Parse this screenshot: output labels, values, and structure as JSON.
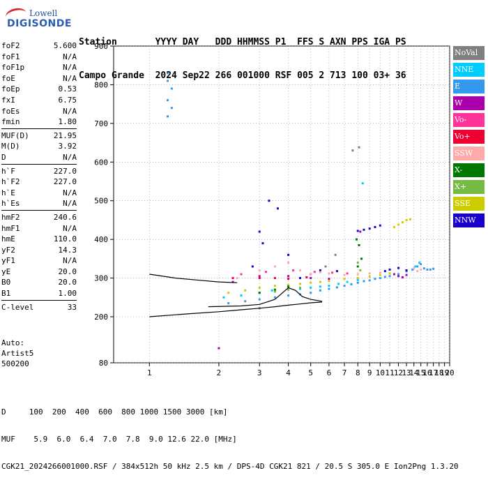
{
  "logo": {
    "line1": "Lowell",
    "line2": "DIGISONDE"
  },
  "header": {
    "line1": "Station       YYYY DAY   DDD HHMMSS P1  FFS S AXN PPS IGA PS",
    "line2": "Campo Grande  2024 Sep22 266 001000 RSF 005 2 713 100 03+ 36"
  },
  "params": {
    "group1": [
      {
        "name": "foF2",
        "value": "5.600"
      },
      {
        "name": "foF1",
        "value": "N/A"
      },
      {
        "name": "foF1p",
        "value": "N/A"
      },
      {
        "name": "foE",
        "value": "N/A"
      },
      {
        "name": "foEp",
        "value": "0.53"
      },
      {
        "name": "fxI",
        "value": "6.75"
      },
      {
        "name": "foEs",
        "value": "N/A"
      },
      {
        "name": "fmin",
        "value": "1.80"
      }
    ],
    "group2": [
      {
        "name": "MUF(D)",
        "value": "21.95"
      },
      {
        "name": "M(D)",
        "value": "3.92"
      },
      {
        "name": "D",
        "value": "N/A"
      }
    ],
    "group3": [
      {
        "name": "h`F",
        "value": "227.0"
      },
      {
        "name": "h`F2",
        "value": "227.0"
      },
      {
        "name": "h`E",
        "value": "N/A"
      },
      {
        "name": "h`Es",
        "value": "N/A"
      }
    ],
    "group4": [
      {
        "name": "hmF2",
        "value": "240.6"
      },
      {
        "name": "hmF1",
        "value": "N/A"
      },
      {
        "name": "hmE",
        "value": "110.0"
      },
      {
        "name": "yF2",
        "value": "14.3"
      },
      {
        "name": "yF1",
        "value": "N/A"
      },
      {
        "name": "yE",
        "value": "20.0"
      },
      {
        "name": "B0",
        "value": "20.0"
      },
      {
        "name": "B1",
        "value": "1.00"
      }
    ],
    "group5": [
      {
        "name": "C-level",
        "value": "33"
      }
    ]
  },
  "auto": {
    "label": "Auto:",
    "software": "Artist5",
    "version": "500200"
  },
  "legend": [
    {
      "label": "NoVal",
      "color": "#808080"
    },
    {
      "label": "NNE",
      "color": "#00ccff"
    },
    {
      "label": "E",
      "color": "#3399ee"
    },
    {
      "label": "W",
      "color": "#aa00aa"
    },
    {
      "label": "Vo-",
      "color": "#ff3399"
    },
    {
      "label": "Vo+",
      "color": "#ee0033"
    },
    {
      "label": "SSW",
      "color": "#ffaaaa"
    },
    {
      "label": "X-",
      "color": "#007700"
    },
    {
      "label": "X+",
      "color": "#77bb44"
    },
    {
      "label": "SSE",
      "color": "#cccc00"
    },
    {
      "label": "NNW",
      "color": "#1a00cc"
    }
  ],
  "footer": {
    "line1": "D     100  200  400  600  800 1000 1500 3000 [km]",
    "line2": "MUF    5.9  6.0  6.4  7.0  7.8  9.0 12.6 22.0 [MHz]",
    "line3": "CGK21_2024266001000.RSF / 384x512h 50 kHz 2.5 km / DPS-4D CGK21 821 / 20.5 S 305.0 E Ion2Png 1.3.20"
  },
  "chart_data": {
    "type": "scatter",
    "xlim": [
      0.7,
      20
    ],
    "ylim": [
      80,
      900
    ],
    "xticks": [
      "1",
      "2",
      "3",
      "4",
      "5",
      "6",
      "7",
      "8",
      "9",
      "10",
      "11",
      "12",
      "13",
      "14",
      "15",
      "16",
      "17",
      "18",
      "19",
      "20"
    ],
    "yticks": [
      "80",
      "200",
      "300",
      "400",
      "500",
      "600",
      "700",
      "800",
      "900"
    ],
    "grid": "dotted",
    "legend_position": "right",
    "series": [
      {
        "name": "E",
        "color": "#3399ee",
        "points": [
          [
            1.2,
            830
          ],
          [
            1.2,
            810
          ],
          [
            1.25,
            790
          ],
          [
            1.2,
            760
          ],
          [
            1.25,
            740
          ],
          [
            1.2,
            718
          ],
          [
            2.2,
            235
          ],
          [
            2.6,
            240
          ],
          [
            3.0,
            245
          ],
          [
            3.5,
            250
          ],
          [
            4.0,
            255
          ],
          [
            4.5,
            258
          ],
          [
            5.0,
            262
          ],
          [
            5.5,
            268
          ],
          [
            6.0,
            272
          ],
          [
            6.5,
            276
          ],
          [
            7.0,
            280
          ],
          [
            7.5,
            284
          ],
          [
            8.0,
            288
          ],
          [
            8.5,
            292
          ],
          [
            9.0,
            294
          ],
          [
            9.5,
            298
          ],
          [
            10.0,
            300
          ],
          [
            10.5,
            303
          ],
          [
            11.0,
            305
          ],
          [
            12.0,
            310
          ],
          [
            13.0,
            318
          ],
          [
            13.8,
            322
          ],
          [
            14.5,
            330
          ],
          [
            15.0,
            336
          ],
          [
            15.5,
            325
          ],
          [
            16.0,
            322
          ],
          [
            16.5,
            322
          ],
          [
            17.0,
            324
          ]
        ]
      },
      {
        "name": "NNE",
        "color": "#00ccff",
        "points": [
          [
            2.1,
            250
          ],
          [
            2.5,
            255
          ],
          [
            3.0,
            262
          ],
          [
            3.4,
            268
          ],
          [
            4.0,
            270
          ],
          [
            4.5,
            272
          ],
          [
            5.0,
            275
          ],
          [
            5.5,
            278
          ],
          [
            6.0,
            280
          ],
          [
            6.6,
            285
          ],
          [
            7.2,
            290
          ],
          [
            8.0,
            295
          ],
          [
            8.4,
            545
          ],
          [
            14.2,
            330
          ],
          [
            14.8,
            340
          ]
        ]
      },
      {
        "name": "SSE",
        "color": "#cccc00",
        "points": [
          [
            2.2,
            262
          ],
          [
            2.6,
            268
          ],
          [
            3.0,
            275
          ],
          [
            3.5,
            280
          ],
          [
            4.0,
            282
          ],
          [
            4.5,
            285
          ],
          [
            5.0,
            288
          ],
          [
            5.5,
            290
          ],
          [
            6.0,
            292
          ],
          [
            7.0,
            298
          ],
          [
            8.0,
            300
          ],
          [
            9.0,
            304
          ],
          [
            10.0,
            308
          ],
          [
            11.0,
            312
          ],
          [
            11.5,
            432
          ],
          [
            12.0,
            438
          ],
          [
            12.5,
            444
          ],
          [
            13.0,
            450
          ],
          [
            13.5,
            452
          ]
        ]
      },
      {
        "name": "NNW",
        "color": "#1a00cc",
        "points": [
          [
            2.8,
            330
          ],
          [
            3.0,
            420
          ],
          [
            3.1,
            390
          ],
          [
            3.3,
            500
          ],
          [
            3.6,
            480
          ],
          [
            4.0,
            360
          ],
          [
            4.5,
            300
          ],
          [
            5.0,
            310
          ],
          [
            5.5,
            320
          ],
          [
            6.5,
            318
          ],
          [
            8.0,
            422
          ],
          [
            8.5,
            425
          ],
          [
            9.0,
            428
          ],
          [
            9.5,
            432
          ],
          [
            10.0,
            436
          ],
          [
            10.5,
            318
          ],
          [
            11.0,
            322
          ],
          [
            12.0,
            326
          ],
          [
            13.0,
            320
          ]
        ]
      },
      {
        "name": "W",
        "color": "#aa00aa",
        "points": [
          [
            2.0,
            118
          ],
          [
            2.3,
            290
          ],
          [
            3.0,
            300
          ],
          [
            4.0,
            305
          ],
          [
            5.0,
            300
          ],
          [
            6.0,
            298
          ],
          [
            8.2,
            420
          ],
          [
            11.5,
            310
          ],
          [
            12.0,
            305
          ],
          [
            12.5,
            302
          ],
          [
            13.0,
            308
          ]
        ]
      },
      {
        "name": "SSW",
        "color": "#ffaaaa",
        "points": [
          [
            2.4,
            300
          ],
          [
            3.0,
            320
          ],
          [
            3.5,
            330
          ],
          [
            4.0,
            340
          ],
          [
            4.5,
            320
          ],
          [
            5.0,
            310
          ],
          [
            5.5,
            315
          ],
          [
            6.0,
            312
          ],
          [
            7.0,
            308
          ],
          [
            8.0,
            310
          ],
          [
            9.0,
            312
          ],
          [
            10.0,
            314
          ],
          [
            14.0,
            325
          ],
          [
            14.5,
            318
          ],
          [
            15.0,
            322
          ]
        ]
      },
      {
        "name": "Vo-",
        "color": "#ff3399",
        "points": [
          [
            2.5,
            310
          ],
          [
            3.2,
            316
          ],
          [
            4.2,
            320
          ],
          [
            5.2,
            316
          ],
          [
            6.2,
            314
          ],
          [
            7.2,
            312
          ]
        ]
      },
      {
        "name": "Vo+",
        "color": "#ee0033",
        "points": [
          [
            2.3,
            300
          ],
          [
            3.0,
            305
          ],
          [
            3.5,
            300
          ],
          [
            4.0,
            298
          ],
          [
            4.8,
            302
          ]
        ]
      },
      {
        "name": "X-",
        "color": "#007700",
        "points": [
          [
            3.0,
            262
          ],
          [
            3.5,
            270
          ],
          [
            4.0,
            278
          ],
          [
            7.9,
            400
          ],
          [
            8.1,
            385
          ],
          [
            8.3,
            350
          ],
          [
            8.0,
            330
          ]
        ]
      },
      {
        "name": "X+",
        "color": "#77bb44",
        "points": [
          [
            3.5,
            265
          ],
          [
            4.0,
            270
          ],
          [
            4.5,
            275
          ],
          [
            8.0,
            340
          ],
          [
            8.2,
            320
          ]
        ]
      },
      {
        "name": "NoVal",
        "color": "#808080",
        "points": [
          [
            3.0,
            222
          ],
          [
            7.6,
            630
          ],
          [
            8.1,
            638
          ],
          [
            6.4,
            360
          ],
          [
            5.8,
            330
          ]
        ]
      }
    ],
    "profile_lines": [
      {
        "name": "virtual-height-trace",
        "color": "#000000",
        "points": [
          [
            1.8,
            226
          ],
          [
            2.5,
            228
          ],
          [
            3.0,
            232
          ],
          [
            3.5,
            245
          ],
          [
            4.0,
            275
          ],
          [
            4.3,
            268
          ],
          [
            4.6,
            252
          ],
          [
            5.0,
            245
          ],
          [
            5.6,
            240
          ]
        ]
      },
      {
        "name": "lower-trace",
        "color": "#000000",
        "points": [
          [
            1.0,
            200
          ],
          [
            1.5,
            208
          ],
          [
            2.0,
            213
          ],
          [
            2.5,
            218
          ],
          [
            3.0,
            222
          ],
          [
            3.5,
            226
          ],
          [
            4.0,
            230
          ],
          [
            4.5,
            233
          ],
          [
            5.0,
            236
          ],
          [
            5.6,
            238
          ]
        ]
      },
      {
        "name": "low-freq-curve",
        "color": "#000000",
        "points": [
          [
            1.0,
            310
          ],
          [
            1.3,
            300
          ],
          [
            1.6,
            295
          ],
          [
            2.0,
            290
          ],
          [
            2.4,
            288
          ]
        ]
      }
    ]
  }
}
